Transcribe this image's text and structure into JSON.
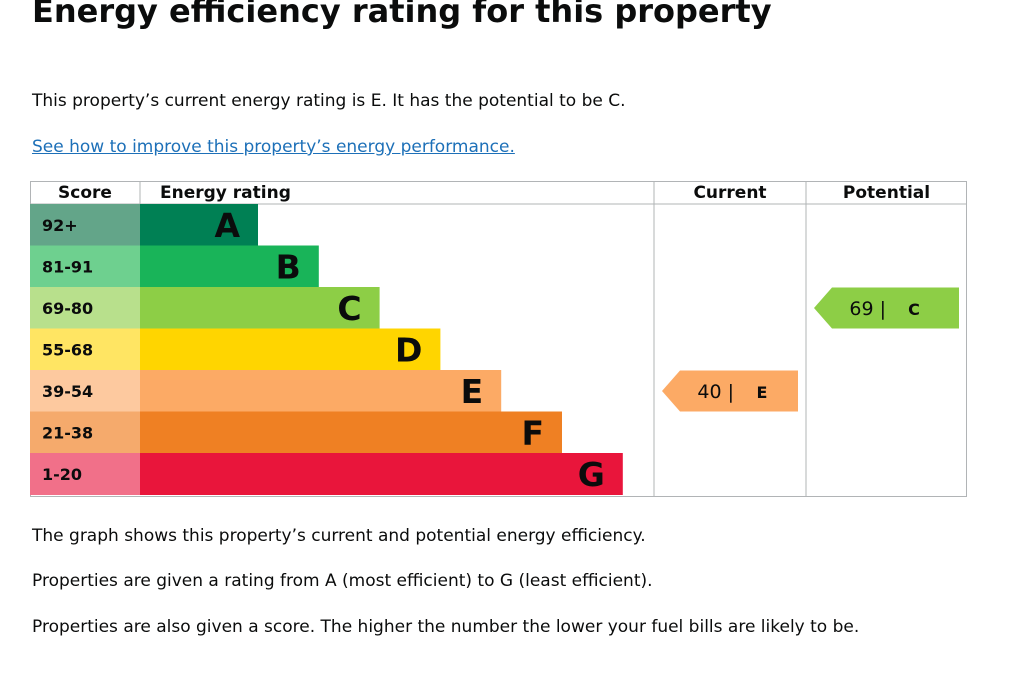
{
  "page": {
    "title": "Energy efficiency rating for this property",
    "intro": "This property’s current energy rating is E. It has the potential to be C.",
    "improve_link": "See how to improve this property’s energy performance.",
    "explanation_1": "The graph shows this property’s current and potential energy efficiency.",
    "explanation_2": "Properties are given a rating from A (most efficient) to G (least efficient).",
    "explanation_3": "Properties are also given a score. The higher the number the lower your fuel bills are likely to be."
  },
  "chart_data": {
    "type": "bar",
    "headers": {
      "score": "Score",
      "rating": "Energy rating",
      "current": "Current",
      "potential": "Potential"
    },
    "bands": [
      {
        "letter": "A",
        "range": "92+",
        "color": "#008054",
        "range_color": "#63a589"
      },
      {
        "letter": "B",
        "range": "81-91",
        "color": "#19b459",
        "range_color": "#6ed08f"
      },
      {
        "letter": "C",
        "range": "69-80",
        "color": "#8dce46",
        "range_color": "#b8e08c"
      },
      {
        "letter": "D",
        "range": "55-68",
        "color": "#ffd500",
        "range_color": "#ffe563"
      },
      {
        "letter": "E",
        "range": "39-54",
        "color": "#fcaa65",
        "range_color": "#fdc99f"
      },
      {
        "letter": "F",
        "range": "21-38",
        "color": "#ef8023",
        "range_color": "#f5aa6c"
      },
      {
        "letter": "G",
        "range": "1-20",
        "color": "#e9153b",
        "range_color": "#f17089"
      }
    ],
    "current": {
      "score": 40,
      "letter": "E",
      "label": "40 |",
      "color": "#fcaa65"
    },
    "potential": {
      "score": 69,
      "letter": "C",
      "label": "69 |",
      "color": "#8dce46"
    },
    "grid_color": "#b1b4b6"
  }
}
